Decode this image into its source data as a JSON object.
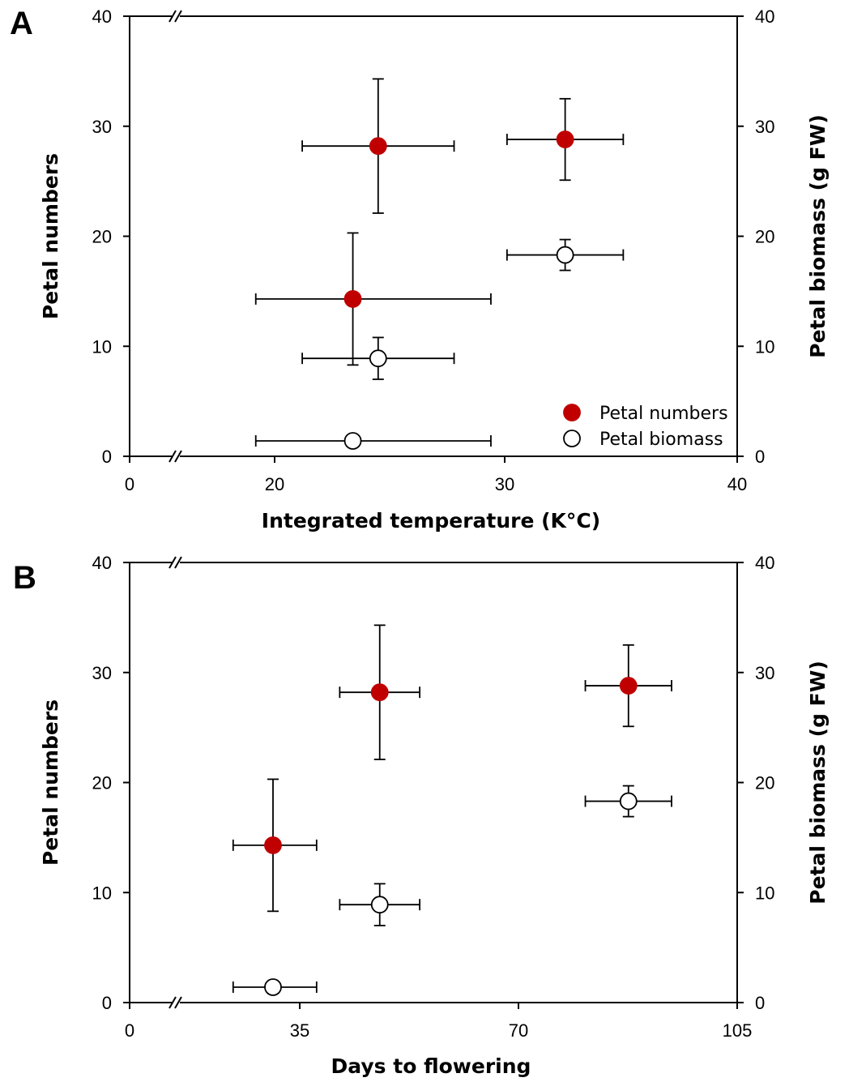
{
  "chart_data": [
    {
      "panel": "A",
      "type": "scatter",
      "title": "",
      "xlabel": "Integrated temperature (K°C)",
      "ylabel_left": "Petal numbers",
      "ylabel_right": "Petal biomass (g FW)",
      "xlim": [
        0,
        40
      ],
      "x_axis_break": true,
      "x_ticks": [
        0,
        20,
        30,
        40
      ],
      "ylim": [
        0,
        40
      ],
      "y_ticks": [
        0,
        10,
        20,
        30,
        40
      ],
      "legend_position": "bottom-right",
      "series": [
        {
          "name": "Petal numbers",
          "marker": "filled-circle",
          "color": "#c00000",
          "points": [
            {
              "x": 23.4,
              "xerr": 6.0,
              "y": 14.3,
              "yerr": 6.0
            },
            {
              "x": 24.5,
              "xerr": 3.3,
              "y": 28.2,
              "yerr": 6.1
            },
            {
              "x": 32.6,
              "xerr": 2.5,
              "y": 28.8,
              "yerr": 3.7
            }
          ]
        },
        {
          "name": "Petal biomass",
          "marker": "open-circle",
          "color": "#ffffff",
          "points": [
            {
              "x": 23.4,
              "xerr": 6.0,
              "y": 1.4,
              "yerr": 0.0
            },
            {
              "x": 24.5,
              "xerr": 3.3,
              "y": 8.9,
              "yerr": 1.9
            },
            {
              "x": 32.6,
              "xerr": 2.5,
              "y": 18.3,
              "yerr": 1.4
            }
          ]
        }
      ]
    },
    {
      "panel": "B",
      "type": "scatter",
      "title": "",
      "xlabel": "Days to flowering",
      "ylabel_left": "Petal numbers",
      "ylabel_right": "Petal biomass (g FW)",
      "xlim": [
        0,
        105
      ],
      "x_axis_break": true,
      "x_ticks": [
        0,
        35,
        70,
        105
      ],
      "ylim": [
        0,
        40
      ],
      "y_ticks": [
        0,
        10,
        20,
        30,
        40
      ],
      "series": [
        {
          "name": "Petal numbers",
          "marker": "filled-circle",
          "color": "#c00000",
          "points": [
            {
              "x": 29.5,
              "xerr": 8.2,
              "y": 14.3,
              "yerr": 6.0
            },
            {
              "x": 47.8,
              "xerr": 6.4,
              "y": 28.2,
              "yerr": 6.1
            },
            {
              "x": 87.6,
              "xerr": 6.9,
              "y": 28.8,
              "yerr": 3.7
            }
          ]
        },
        {
          "name": "Petal biomass",
          "marker": "open-circle",
          "color": "#ffffff",
          "points": [
            {
              "x": 29.5,
              "xerr": 8.2,
              "y": 1.4,
              "yerr": 0.0
            },
            {
              "x": 47.8,
              "xerr": 6.4,
              "y": 8.9,
              "yerr": 1.9
            },
            {
              "x": 87.6,
              "xerr": 6.9,
              "y": 18.3,
              "yerr": 1.4
            }
          ]
        }
      ]
    }
  ]
}
